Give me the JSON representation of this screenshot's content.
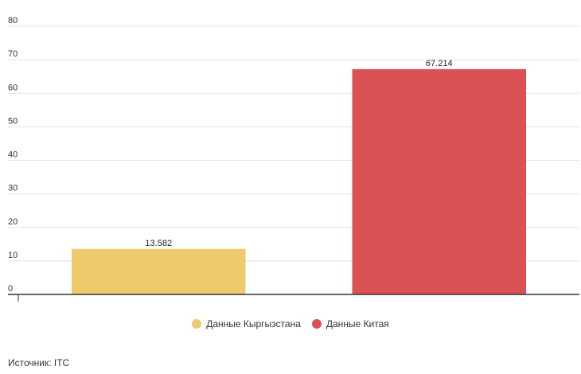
{
  "chart_data": {
    "type": "bar",
    "categories": [
      "Данные Кыргызстана",
      "Данные Китая"
    ],
    "values": [
      13.582,
      67.214
    ],
    "value_labels": [
      "13.582",
      "67.214"
    ],
    "colors": [
      "#EDCA6B",
      "#DB5255"
    ],
    "ylim": [
      0,
      80
    ],
    "yticks": [
      0,
      10,
      20,
      30,
      40,
      50,
      60,
      70,
      80
    ],
    "grid": true,
    "legend_position": "bottom-center",
    "title": "",
    "xlabel": "",
    "ylabel": ""
  },
  "legend": {
    "items": [
      {
        "label": "Данные Кыргызстана",
        "color": "#EDCA6B"
      },
      {
        "label": "Данные Китая",
        "color": "#DB5255"
      }
    ]
  },
  "footer": {
    "source": "Источник: ITC"
  }
}
